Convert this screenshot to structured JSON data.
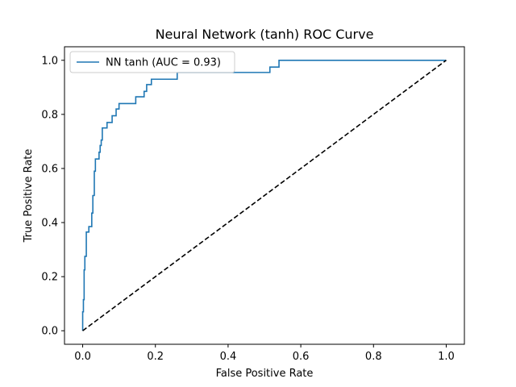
{
  "chart_data": {
    "type": "line",
    "title": "Neural Network (tanh) ROC Curve",
    "xlabel": "False Positive Rate",
    "ylabel": "True Positive Rate",
    "xlim": [
      -0.05,
      1.05
    ],
    "ylim": [
      -0.05,
      1.05
    ],
    "xticks": [
      "0.0",
      "0.2",
      "0.4",
      "0.6",
      "0.8",
      "1.0"
    ],
    "yticks": [
      "0.0",
      "0.2",
      "0.4",
      "0.6",
      "0.8",
      "1.0"
    ],
    "grid": false,
    "legend_position": "top-left",
    "series": [
      {
        "name": "NN tanh (AUC = 0.93)",
        "color": "#1f77b4",
        "style": "solid",
        "x": [
          0.0,
          0.0,
          0.002,
          0.002,
          0.004,
          0.004,
          0.006,
          0.006,
          0.01,
          0.01,
          0.017,
          0.017,
          0.025,
          0.025,
          0.028,
          0.028,
          0.032,
          0.032,
          0.035,
          0.035,
          0.045,
          0.045,
          0.048,
          0.048,
          0.051,
          0.051,
          0.054,
          0.054,
          0.067,
          0.067,
          0.081,
          0.081,
          0.092,
          0.092,
          0.1,
          0.1,
          0.146,
          0.146,
          0.169,
          0.169,
          0.176,
          0.176,
          0.189,
          0.189,
          0.26,
          0.26,
          0.515,
          0.515,
          0.54,
          0.54,
          1.0
        ],
        "y": [
          0.0,
          0.07,
          0.07,
          0.115,
          0.115,
          0.225,
          0.225,
          0.275,
          0.275,
          0.365,
          0.365,
          0.385,
          0.385,
          0.435,
          0.435,
          0.5,
          0.5,
          0.59,
          0.59,
          0.635,
          0.635,
          0.66,
          0.66,
          0.685,
          0.685,
          0.705,
          0.705,
          0.75,
          0.75,
          0.77,
          0.77,
          0.795,
          0.795,
          0.82,
          0.82,
          0.84,
          0.84,
          0.865,
          0.865,
          0.885,
          0.885,
          0.91,
          0.91,
          0.93,
          0.93,
          0.955,
          0.955,
          0.975,
          0.975,
          1.0,
          1.0
        ]
      },
      {
        "name": "",
        "color": "#000000",
        "style": "dashed",
        "x": [
          0.0,
          1.0
        ],
        "y": [
          0.0,
          1.0
        ]
      }
    ]
  }
}
